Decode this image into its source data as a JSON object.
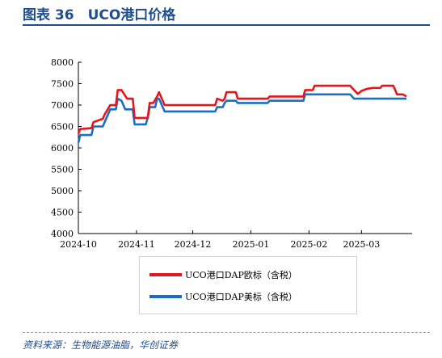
{
  "figure": {
    "title": "图表 36　UCO港口价格",
    "source": "资料来源：生物能源油脂，华创证券"
  },
  "colors": {
    "title": "#1f4e8c",
    "eu_series": "#e8141c",
    "us_series": "#1a6fc4"
  },
  "chart_data": {
    "type": "line",
    "title": "",
    "xlabel": "",
    "ylabel": "",
    "ylim": [
      4000,
      8000
    ],
    "yticks": [
      4000,
      4500,
      5000,
      5500,
      6000,
      6500,
      7000,
      7500,
      8000
    ],
    "xticks": [
      "2024-10",
      "2024-11",
      "2024-12",
      "2025-01",
      "2025-02",
      "2025-03"
    ],
    "xlim": [
      "2024-10-01",
      "2025-03-28"
    ],
    "grid": false,
    "legend": "bottom",
    "series": [
      {
        "name": "UCO港口DAP欧标（含税）",
        "points": [
          [
            "2024-10-01",
            6330
          ],
          [
            "2024-10-02",
            6440
          ],
          [
            "2024-10-08",
            6460
          ],
          [
            "2024-10-09",
            6600
          ],
          [
            "2024-10-14",
            6680
          ],
          [
            "2024-10-15",
            6780
          ],
          [
            "2024-10-18",
            7000
          ],
          [
            "2024-10-21",
            7000
          ],
          [
            "2024-10-22",
            7350
          ],
          [
            "2024-10-24",
            7350
          ],
          [
            "2024-10-27",
            7150
          ],
          [
            "2024-10-30",
            7150
          ],
          [
            "2024-10-31",
            6700
          ],
          [
            "2024-11-07",
            6700
          ],
          [
            "2024-11-08",
            7050
          ],
          [
            "2024-11-10",
            7050
          ],
          [
            "2024-11-12",
            7200
          ],
          [
            "2024-11-13",
            7300
          ],
          [
            "2024-11-16",
            7000
          ],
          [
            "2024-11-30",
            7000
          ],
          [
            "2024-12-13",
            7000
          ],
          [
            "2024-12-14",
            7150
          ],
          [
            "2024-12-17",
            7100
          ],
          [
            "2024-12-18",
            7150
          ],
          [
            "2024-12-19",
            7300
          ],
          [
            "2024-12-24",
            7300
          ],
          [
            "2024-12-25",
            7150
          ],
          [
            "2025-01-10",
            7150
          ],
          [
            "2025-01-11",
            7200
          ],
          [
            "2025-01-29",
            7200
          ],
          [
            "2025-01-30",
            7350
          ],
          [
            "2025-02-03",
            7350
          ],
          [
            "2025-02-04",
            7450
          ],
          [
            "2025-02-23",
            7450
          ],
          [
            "2025-02-25",
            7350
          ],
          [
            "2025-02-27",
            7260
          ],
          [
            "2025-03-01",
            7330
          ],
          [
            "2025-03-04",
            7380
          ],
          [
            "2025-03-07",
            7400
          ],
          [
            "2025-03-11",
            7400
          ],
          [
            "2025-03-12",
            7450
          ],
          [
            "2025-03-18",
            7450
          ],
          [
            "2025-03-20",
            7250
          ],
          [
            "2025-03-23",
            7250
          ],
          [
            "2025-03-25",
            7200
          ]
        ]
      },
      {
        "name": "UCO港口DAP美标（含税）",
        "points": [
          [
            "2024-10-01",
            6120
          ],
          [
            "2024-10-02",
            6300
          ],
          [
            "2024-10-08",
            6300
          ],
          [
            "2024-10-09",
            6500
          ],
          [
            "2024-10-14",
            6500
          ],
          [
            "2024-10-15",
            6600
          ],
          [
            "2024-10-18",
            6900
          ],
          [
            "2024-10-21",
            6900
          ],
          [
            "2024-10-22",
            7150
          ],
          [
            "2024-10-24",
            7100
          ],
          [
            "2024-10-26",
            6900
          ],
          [
            "2024-10-30",
            6900
          ],
          [
            "2024-10-31",
            6550
          ],
          [
            "2024-11-06",
            6550
          ],
          [
            "2024-11-07",
            6700
          ],
          [
            "2024-11-08",
            6950
          ],
          [
            "2024-11-11",
            6950
          ],
          [
            "2024-11-12",
            7150
          ],
          [
            "2024-11-13",
            7150
          ],
          [
            "2024-11-16",
            6850
          ],
          [
            "2024-11-30",
            6850
          ],
          [
            "2024-12-13",
            6850
          ],
          [
            "2024-12-14",
            6950
          ],
          [
            "2024-12-17",
            6950
          ],
          [
            "2024-12-18",
            7050
          ],
          [
            "2024-12-19",
            7100
          ],
          [
            "2024-12-24",
            7100
          ],
          [
            "2024-12-25",
            7050
          ],
          [
            "2025-01-10",
            7050
          ],
          [
            "2025-01-11",
            7100
          ],
          [
            "2025-01-29",
            7100
          ],
          [
            "2025-01-30",
            7250
          ],
          [
            "2025-02-23",
            7250
          ],
          [
            "2025-02-25",
            7150
          ],
          [
            "2025-03-25",
            7150
          ]
        ]
      }
    ]
  }
}
